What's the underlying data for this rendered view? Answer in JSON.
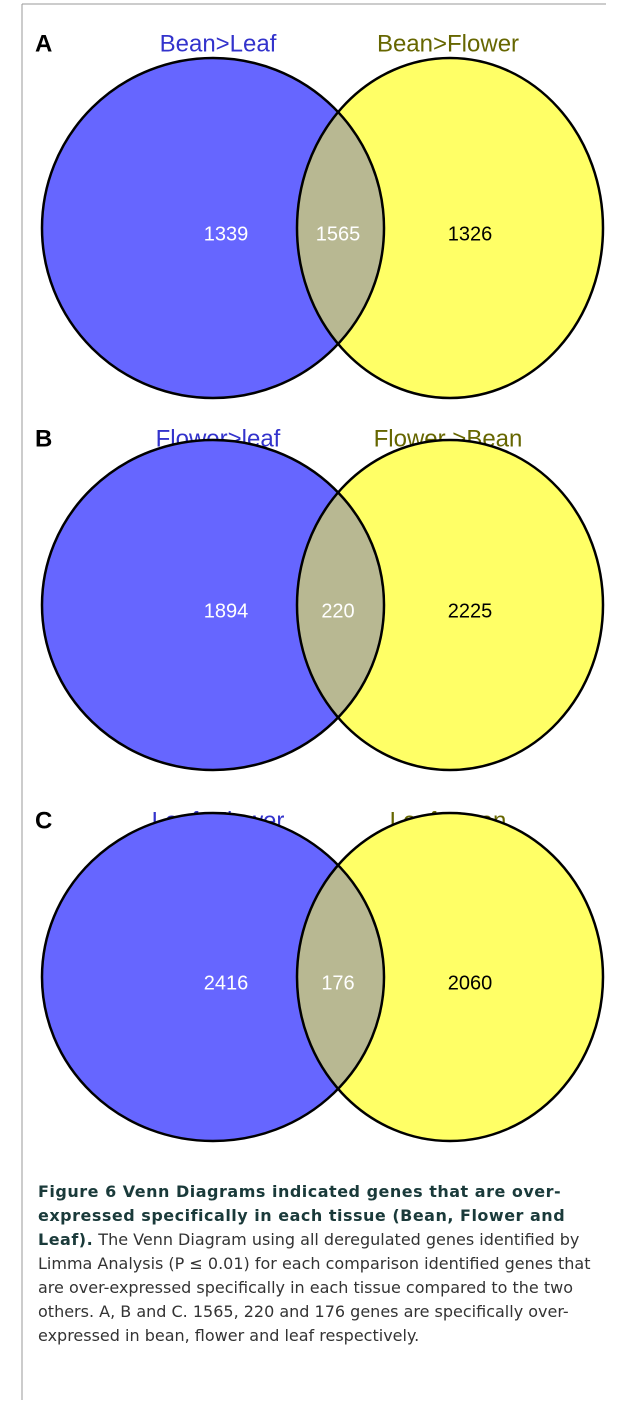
{
  "chart_data": [
    {
      "type": "venn",
      "label": "A",
      "sets": [
        {
          "name": "Bean>Leaf",
          "color": "#6666ff",
          "title_color": "#3333cc"
        },
        {
          "name": "Bean>Flower",
          "color": "#ffff66",
          "title_color": "#666600"
        }
      ],
      "overlap_color": "#b8b892",
      "values": [
        1339,
        1565,
        1326
      ]
    },
    {
      "type": "venn",
      "label": "B",
      "sets": [
        {
          "name": "Flower>leaf",
          "color": "#6666ff",
          "title_color": "#3333cc"
        },
        {
          "name": "Flower >Bean",
          "color": "#ffff66",
          "title_color": "#666600"
        }
      ],
      "overlap_color": "#b8b892",
      "values": [
        1894,
        220,
        2225
      ]
    },
    {
      "type": "venn",
      "label": "C",
      "sets": [
        {
          "name": "Leaf>Flower",
          "color": "#6666ff",
          "title_color": "#3333cc"
        },
        {
          "name": "Leaf>Bean",
          "color": "#ffff66",
          "title_color": "#666600"
        }
      ],
      "overlap_color": "#b8b892",
      "values": [
        2416,
        176,
        2060
      ]
    }
  ],
  "caption": {
    "title": "Figure 6 Venn Diagrams indicated genes that are over-expressed specifically in each tissue (Bean, Flower and Leaf).",
    "text": "The Venn Diagram using all deregulated genes identified by Limma Analysis (P ≤ 0.01) for each comparison identified genes that are over-expressed specifically in each tissue compared to the two others. A, B and C. 1565, 220 and 176 genes are specifically over-expressed in bean, flower and leaf respectively."
  }
}
